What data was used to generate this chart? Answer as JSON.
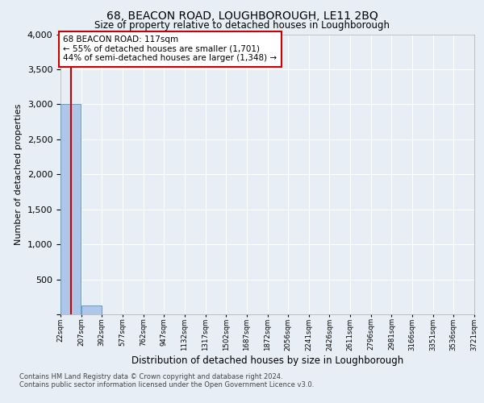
{
  "title_line1": "68, BEACON ROAD, LOUGHBOROUGH, LE11 2BQ",
  "title_line2": "Size of property relative to detached houses in Loughborough",
  "xlabel": "Distribution of detached houses by size in Loughborough",
  "ylabel": "Number of detached properties",
  "footer_line1": "Contains HM Land Registry data © Crown copyright and database right 2024.",
  "footer_line2": "Contains public sector information licensed under the Open Government Licence v3.0.",
  "annotation_line1": "68 BEACON ROAD: 117sqm",
  "annotation_line2": "← 55% of detached houses are smaller (1,701)",
  "annotation_line3": "44% of semi-detached houses are larger (1,348) →",
  "bin_edges": [
    22,
    207,
    392,
    577,
    762,
    947,
    1132,
    1317,
    1502,
    1687,
    1872,
    2056,
    2241,
    2426,
    2611,
    2796,
    2981,
    3166,
    3351,
    3536,
    3721
  ],
  "bar_heights": [
    3000,
    125,
    0,
    0,
    0,
    0,
    0,
    0,
    0,
    0,
    0,
    0,
    0,
    0,
    0,
    0,
    0,
    0,
    0,
    0
  ],
  "bar_color": "#aec6e8",
  "bar_edge_color": "#5a9fd4",
  "property_line_x": 117,
  "property_line_color": "#cc0000",
  "ylim": [
    0,
    4000
  ],
  "yticks": [
    0,
    500,
    1000,
    1500,
    2000,
    2500,
    3000,
    3500,
    4000
  ],
  "background_color": "#e8eef5",
  "plot_background_color": "#e8eef5",
  "annotation_box_color": "#ffffff",
  "annotation_box_edge": "#cc0000",
  "grid_color": "#ffffff",
  "title1_fontsize": 10,
  "title2_fontsize": 8.5,
  "ylabel_fontsize": 8,
  "xlabel_fontsize": 8.5,
  "ytick_fontsize": 8,
  "xtick_fontsize": 6.2,
  "footer_fontsize": 6,
  "annot_fontsize": 7.5
}
